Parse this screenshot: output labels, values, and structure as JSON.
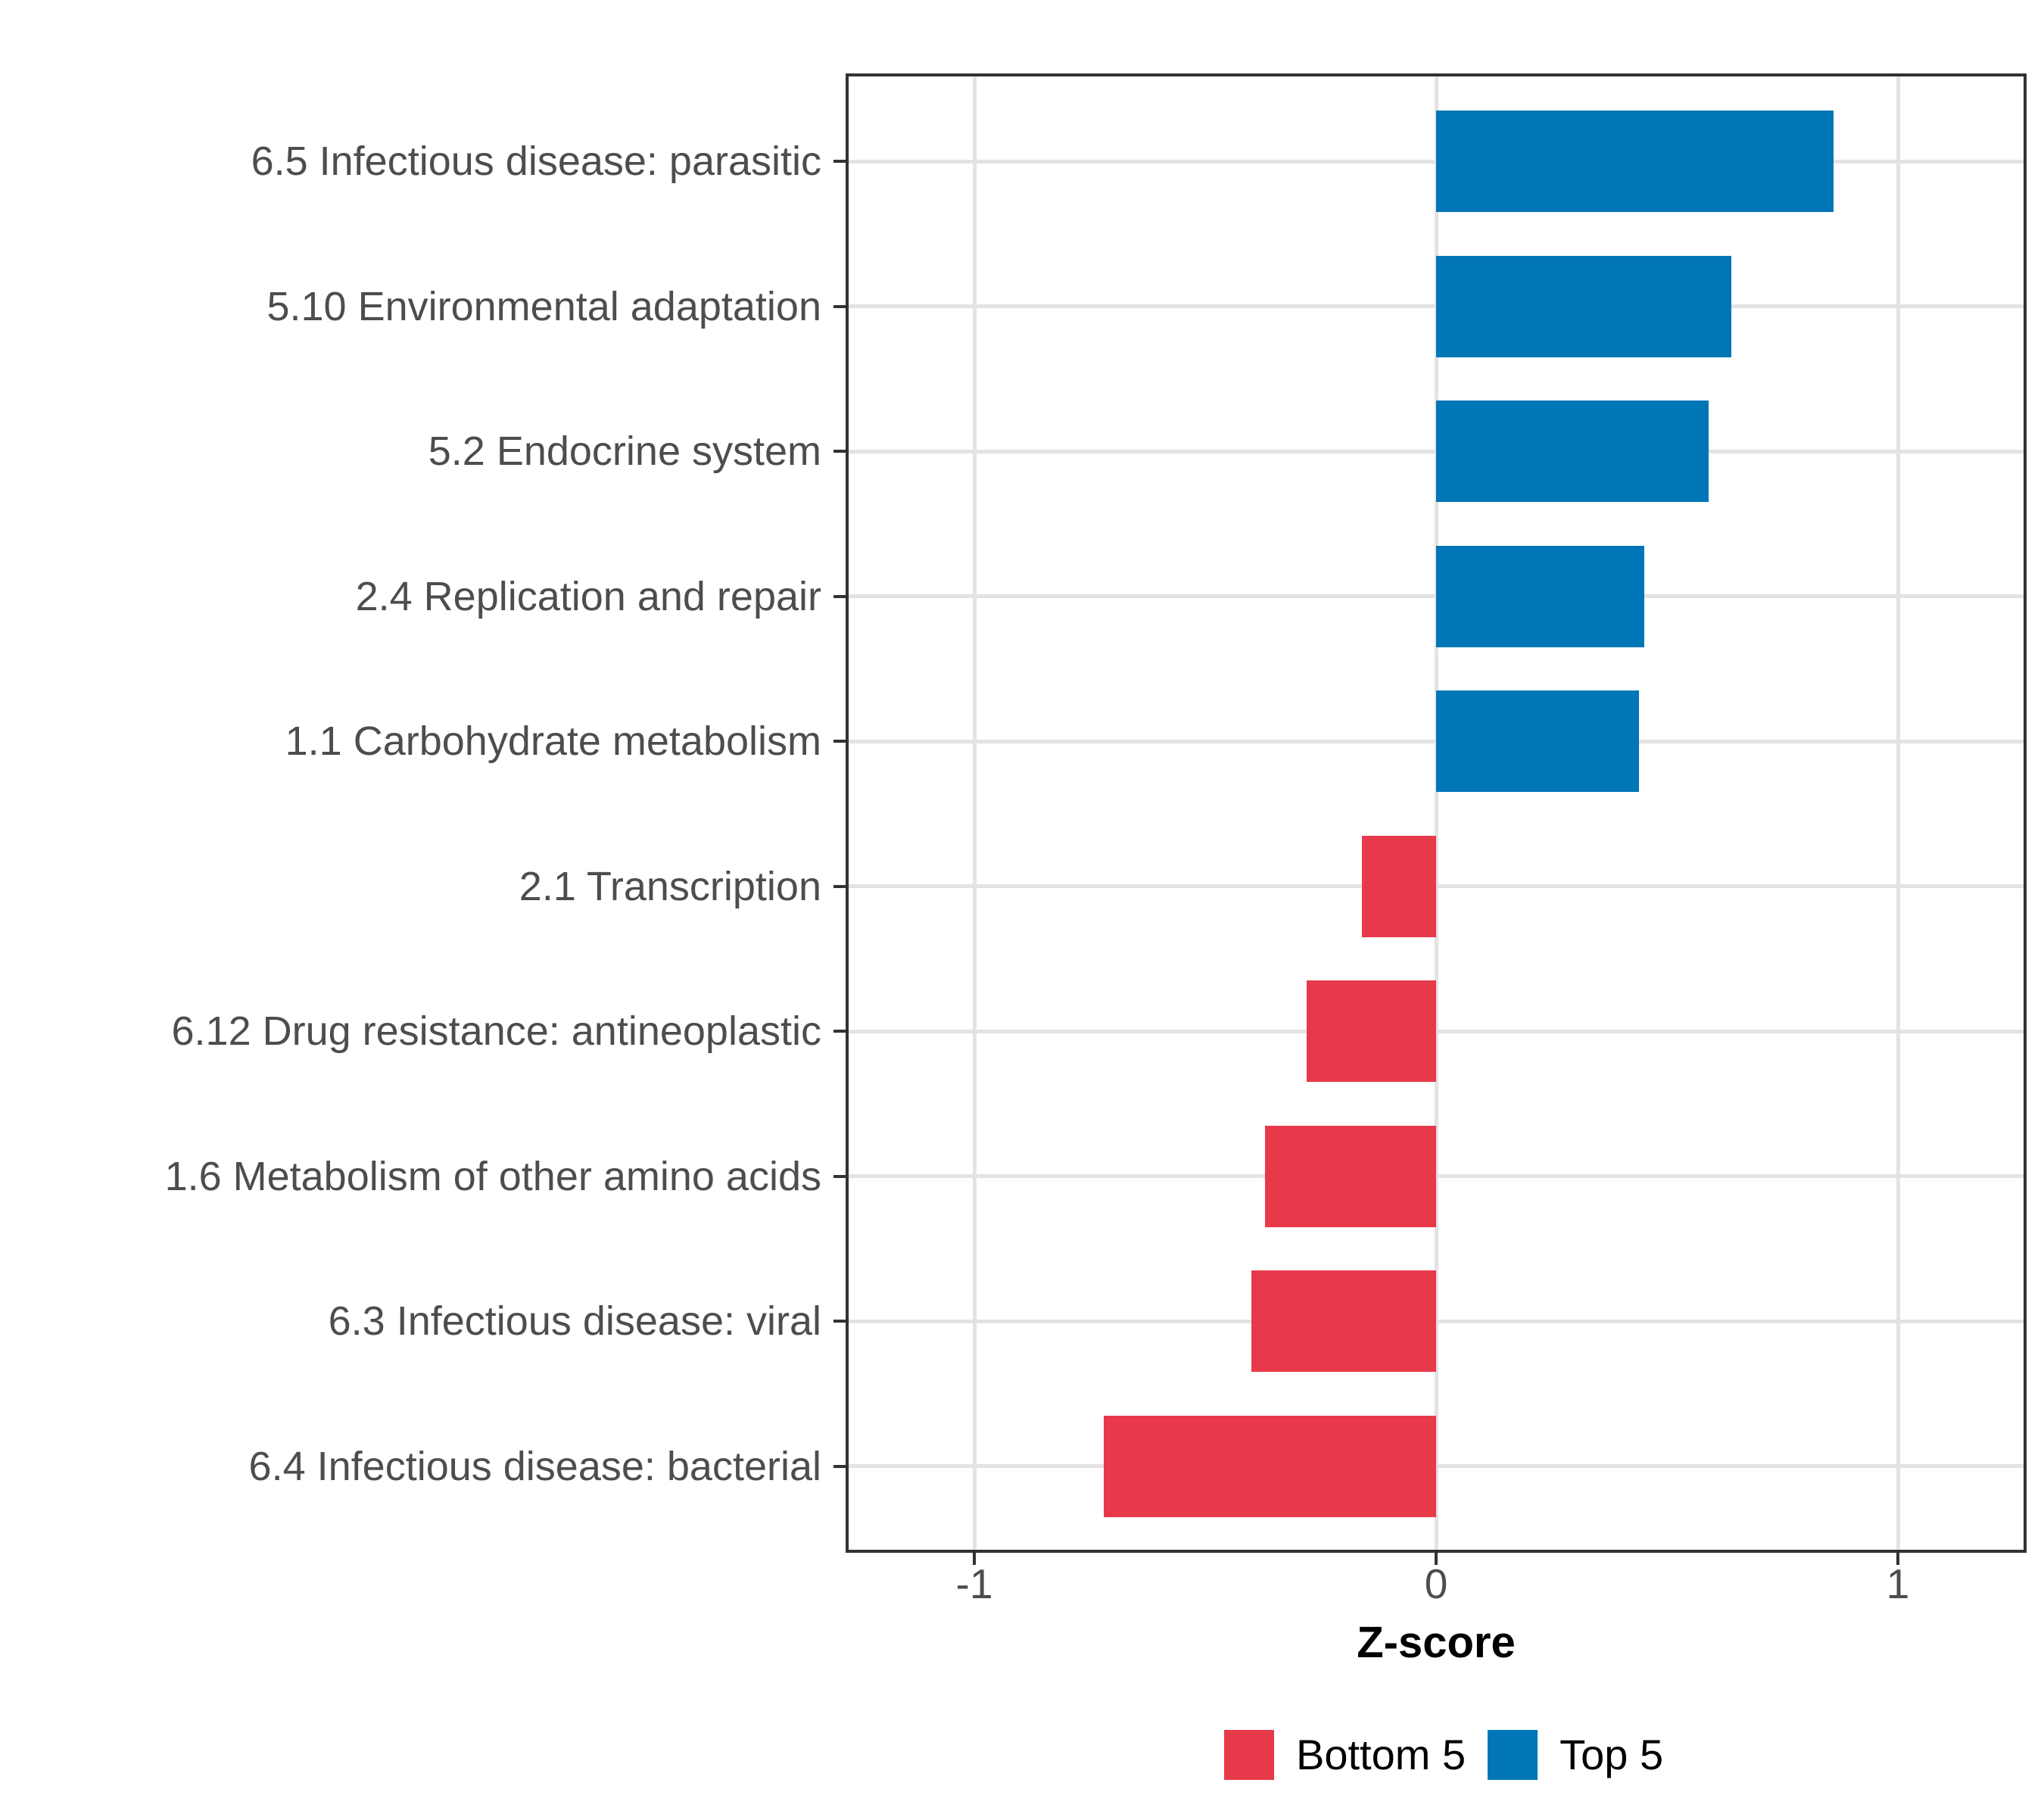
{
  "chart_data": {
    "type": "bar",
    "orientation": "horizontal",
    "xlabel": "Z-score",
    "categories": [
      "6.5 Infectious disease: parasitic",
      "5.10 Environmental adaptation",
      "5.2 Endocrine system",
      "2.4 Replication and repair",
      "1.1 Carbohydrate metabolism",
      "2.1 Transcription",
      "6.12 Drug resistance: antineoplastic",
      "1.6 Metabolism of other amino acids",
      "6.3 Infectious disease: viral",
      "6.4 Infectious disease: bacterial"
    ],
    "values": [
      0.86,
      0.64,
      0.59,
      0.45,
      0.44,
      -0.16,
      -0.28,
      -0.37,
      -0.4,
      -0.72
    ],
    "groups": [
      "Top 5",
      "Top 5",
      "Top 5",
      "Top 5",
      "Top 5",
      "Bottom 5",
      "Bottom 5",
      "Bottom 5",
      "Bottom 5",
      "Bottom 5"
    ],
    "x_ticks": [
      "-1",
      "0",
      "1"
    ],
    "x_tick_values": [
      -1,
      0,
      1
    ],
    "xlim": [
      -1.275,
      1.275
    ],
    "grid": true,
    "legend_position": "bottom",
    "legend": [
      {
        "label": "Bottom 5",
        "color": "#E8394A"
      },
      {
        "label": "Top 5",
        "color": "#0076B6"
      }
    ],
    "colors": {
      "Bottom 5": "#E8394A",
      "Top 5": "#0076B6",
      "axis_text": "#4d4d4d",
      "gridline": "#e3e3e3",
      "border": "#323232"
    }
  }
}
